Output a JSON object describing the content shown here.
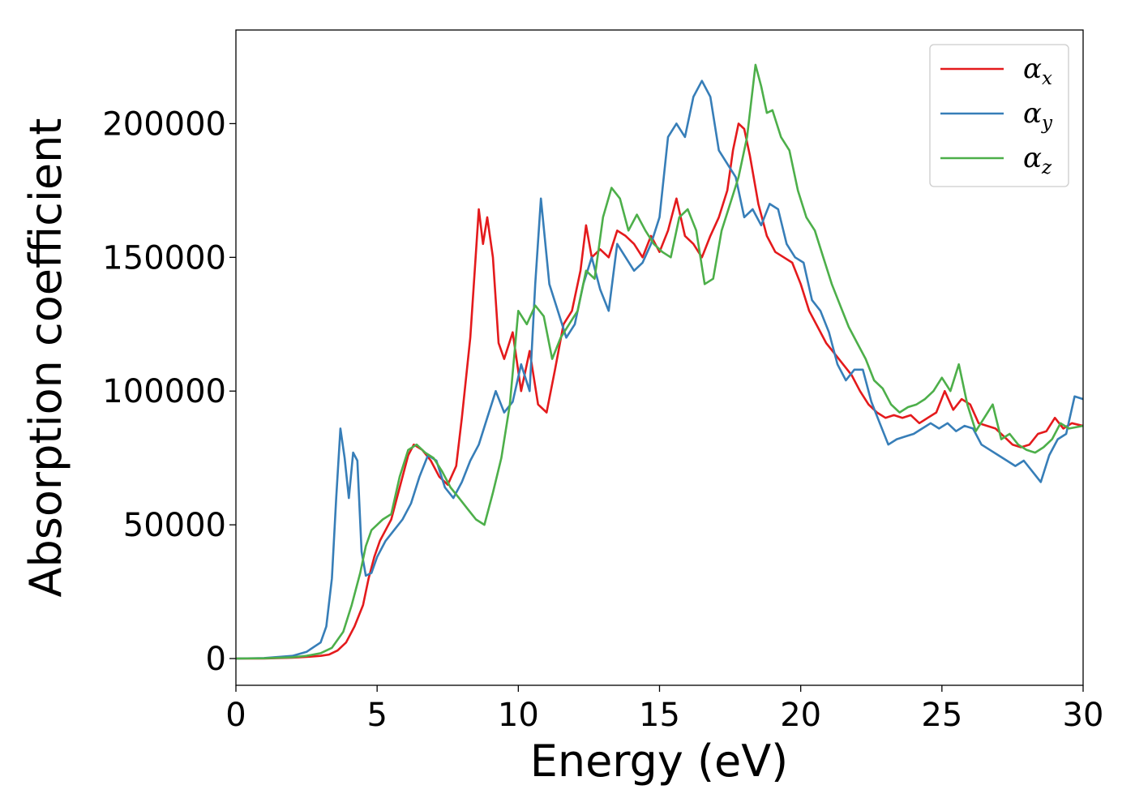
{
  "chart_data": {
    "type": "line",
    "xlabel": "Energy (eV)",
    "ylabel": "Absorption coefficient",
    "xlim": [
      0,
      30
    ],
    "ylim": [
      -10000,
      235000
    ],
    "xticks": [
      0,
      5,
      10,
      15,
      20,
      25,
      30
    ],
    "yticks": [
      0,
      50000,
      100000,
      150000,
      200000
    ],
    "grid": false,
    "legend_position": "top-right",
    "series": [
      {
        "name": "αx",
        "legend_base": "α",
        "legend_sub": "x",
        "color": "#e41a1c",
        "x": [
          0,
          1,
          2,
          2.5,
          3,
          3.3,
          3.6,
          3.9,
          4.2,
          4.5,
          4.7,
          4.9,
          5.1,
          5.3,
          5.5,
          5.8,
          6.1,
          6.3,
          6.6,
          6.9,
          7.2,
          7.5,
          7.8,
          8.0,
          8.3,
          8.6,
          8.75,
          8.9,
          9.1,
          9.3,
          9.5,
          9.8,
          10.1,
          10.4,
          10.7,
          11.0,
          11.3,
          11.6,
          11.9,
          12.2,
          12.4,
          12.6,
          12.9,
          13.2,
          13.5,
          13.8,
          14.1,
          14.4,
          14.7,
          15.0,
          15.3,
          15.6,
          15.9,
          16.2,
          16.5,
          16.8,
          17.1,
          17.4,
          17.6,
          17.8,
          18.0,
          18.2,
          18.5,
          18.8,
          19.1,
          19.4,
          19.7,
          20.0,
          20.3,
          20.6,
          20.9,
          21.2,
          21.5,
          21.8,
          22.1,
          22.4,
          22.7,
          23.0,
          23.3,
          23.6,
          23.9,
          24.2,
          24.5,
          24.8,
          25.1,
          25.4,
          25.7,
          26.0,
          26.3,
          26.6,
          26.9,
          27.2,
          27.5,
          27.8,
          28.1,
          28.4,
          28.7,
          29.0,
          29.3,
          29.6,
          30
        ],
        "y": [
          0,
          0,
          300,
          600,
          1000,
          1500,
          3000,
          6000,
          12000,
          20000,
          30000,
          38000,
          44000,
          48000,
          52000,
          64000,
          76000,
          80000,
          78000,
          74000,
          68000,
          65000,
          72000,
          90000,
          120000,
          168000,
          155000,
          165000,
          150000,
          118000,
          112000,
          122000,
          100000,
          115000,
          95000,
          92000,
          108000,
          125000,
          130000,
          145000,
          162000,
          150000,
          153000,
          150000,
          160000,
          158000,
          155000,
          150000,
          158000,
          152000,
          160000,
          172000,
          158000,
          155000,
          150000,
          158000,
          165000,
          175000,
          190000,
          200000,
          198000,
          188000,
          170000,
          158000,
          152000,
          150000,
          148000,
          140000,
          130000,
          124000,
          118000,
          114000,
          110000,
          106000,
          100000,
          95000,
          92000,
          90000,
          91000,
          90000,
          91000,
          88000,
          90000,
          92000,
          100000,
          93000,
          97000,
          95000,
          88000,
          87000,
          86000,
          83000,
          80000,
          79000,
          80000,
          84000,
          85000,
          90000,
          86000,
          88000,
          87000
        ]
      },
      {
        "name": "αy",
        "legend_base": "α",
        "legend_sub": "y",
        "color": "#377eb8",
        "x": [
          0,
          1,
          2,
          2.5,
          3,
          3.2,
          3.4,
          3.55,
          3.7,
          3.85,
          4.0,
          4.15,
          4.3,
          4.45,
          4.6,
          4.8,
          5.0,
          5.3,
          5.6,
          5.9,
          6.2,
          6.5,
          6.8,
          7.1,
          7.4,
          7.7,
          8.0,
          8.3,
          8.6,
          8.9,
          9.2,
          9.5,
          9.8,
          10.1,
          10.4,
          10.6,
          10.8,
          11.1,
          11.4,
          11.7,
          12.0,
          12.3,
          12.6,
          12.9,
          13.2,
          13.5,
          13.8,
          14.1,
          14.4,
          14.7,
          15.0,
          15.3,
          15.6,
          15.9,
          16.2,
          16.5,
          16.8,
          17.1,
          17.4,
          17.7,
          18.0,
          18.3,
          18.6,
          18.9,
          19.2,
          19.5,
          19.8,
          20.1,
          20.4,
          20.7,
          21.0,
          21.3,
          21.6,
          21.9,
          22.2,
          22.5,
          22.8,
          23.1,
          23.4,
          23.7,
          24.0,
          24.3,
          24.6,
          24.9,
          25.2,
          25.5,
          25.8,
          26.1,
          26.4,
          26.7,
          27.0,
          27.3,
          27.6,
          27.9,
          28.2,
          28.5,
          28.8,
          29.1,
          29.4,
          29.7,
          30
        ],
        "y": [
          0,
          200,
          1000,
          2500,
          6000,
          12000,
          30000,
          60000,
          86000,
          75000,
          60000,
          77000,
          74000,
          40000,
          31000,
          32000,
          38000,
          44000,
          48000,
          52000,
          58000,
          68000,
          76000,
          74000,
          64000,
          60000,
          66000,
          74000,
          80000,
          90000,
          100000,
          92000,
          96000,
          110000,
          100000,
          140000,
          172000,
          140000,
          130000,
          120000,
          125000,
          140000,
          150000,
          138000,
          130000,
          155000,
          150000,
          145000,
          148000,
          155000,
          165000,
          195000,
          200000,
          195000,
          210000,
          216000,
          210000,
          190000,
          185000,
          180000,
          165000,
          168000,
          162000,
          170000,
          168000,
          155000,
          150000,
          148000,
          134000,
          130000,
          122000,
          110000,
          104000,
          108000,
          108000,
          96000,
          88000,
          80000,
          82000,
          83000,
          84000,
          86000,
          88000,
          86000,
          88000,
          85000,
          87000,
          86000,
          80000,
          78000,
          76000,
          74000,
          72000,
          74000,
          70000,
          66000,
          76000,
          82000,
          84000,
          98000,
          97000
        ]
      },
      {
        "name": "αz",
        "legend_base": "α",
        "legend_sub": "z",
        "color": "#4daf4a",
        "x": [
          0,
          1,
          2,
          2.5,
          3,
          3.4,
          3.8,
          4.1,
          4.4,
          4.6,
          4.8,
          5.0,
          5.2,
          5.5,
          5.8,
          6.1,
          6.4,
          6.7,
          7.0,
          7.3,
          7.6,
          7.9,
          8.2,
          8.5,
          8.8,
          9.1,
          9.4,
          9.7,
          10.0,
          10.3,
          10.6,
          10.9,
          11.2,
          11.5,
          11.8,
          12.1,
          12.4,
          12.7,
          13.0,
          13.3,
          13.6,
          13.9,
          14.2,
          14.5,
          14.8,
          15.1,
          15.4,
          15.7,
          16.0,
          16.3,
          16.6,
          16.9,
          17.2,
          17.5,
          17.8,
          18.1,
          18.4,
          18.6,
          18.8,
          19.0,
          19.3,
          19.6,
          19.9,
          20.2,
          20.5,
          20.8,
          21.1,
          21.4,
          21.7,
          22.0,
          22.3,
          22.6,
          22.9,
          23.2,
          23.5,
          23.8,
          24.1,
          24.4,
          24.7,
          25.0,
          25.3,
          25.6,
          25.9,
          26.2,
          26.5,
          26.8,
          27.1,
          27.4,
          27.7,
          28.0,
          28.3,
          28.6,
          28.9,
          29.2,
          29.5,
          30
        ],
        "y": [
          0,
          100,
          500,
          1000,
          2000,
          4000,
          10000,
          20000,
          32000,
          42000,
          48000,
          50000,
          52000,
          54000,
          68000,
          78000,
          80000,
          77000,
          75000,
          70000,
          64000,
          60000,
          56000,
          52000,
          50000,
          62000,
          75000,
          95000,
          130000,
          125000,
          132000,
          128000,
          112000,
          120000,
          125000,
          130000,
          145000,
          142000,
          165000,
          176000,
          172000,
          160000,
          166000,
          160000,
          155000,
          152000,
          150000,
          165000,
          168000,
          160000,
          140000,
          142000,
          160000,
          170000,
          180000,
          195000,
          222000,
          214000,
          204000,
          205000,
          195000,
          190000,
          175000,
          165000,
          160000,
          150000,
          140000,
          132000,
          124000,
          118000,
          112000,
          104000,
          101000,
          95000,
          92000,
          94000,
          95000,
          97000,
          100000,
          105000,
          100000,
          110000,
          95000,
          85000,
          90000,
          95000,
          82000,
          84000,
          80000,
          78000,
          77000,
          79000,
          82000,
          88000,
          86000,
          87000
        ]
      }
    ]
  }
}
